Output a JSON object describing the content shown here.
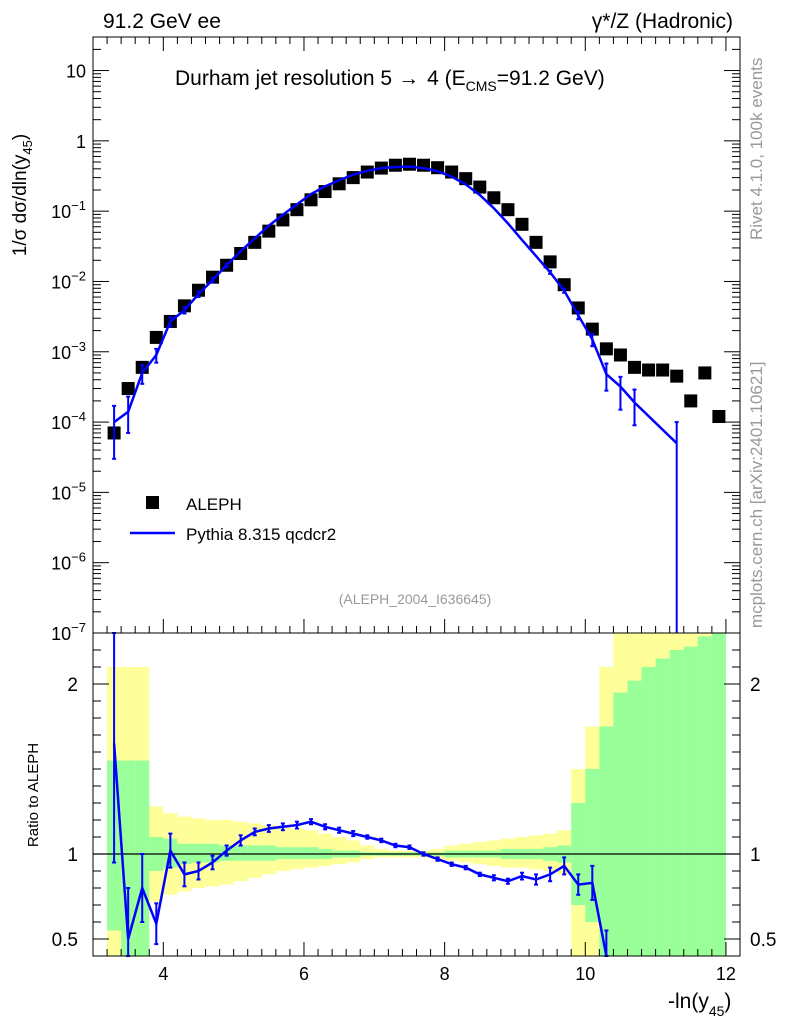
{
  "header": {
    "left": "91.2 GeV ee",
    "right": "γ*/Z (Hadronic)"
  },
  "side": {
    "rivet": "Rivet 4.1.0,  100k events",
    "mcplots": "mcplots.cern.ch [arXiv:2401.10621]"
  },
  "chart_data": {
    "type": "line",
    "title": "Durham jet resolution 5 → 4 (E_CMS=91.2 GeV)",
    "title_parts": {
      "lead": "Durham jet resolution 5",
      "arrow": "→",
      "tail": "4 (E",
      "sub": "CMS",
      "end": "=91.2 GeV)"
    },
    "analysis_id": "(ALEPH_2004_I636645)",
    "xlabel": "-ln(y45)",
    "xlabel_parts": {
      "main": "-ln(y",
      "sub": "45",
      "end": ")"
    },
    "ylabel": "1/σ dσ/dln(y45)",
    "ylabel_parts": {
      "main": "1/σ  dσ/dln(y",
      "sub": "45",
      "end": ")"
    },
    "ratio_ylabel": "Ratio to ALEPH",
    "xlim": [
      3.0,
      12.2
    ],
    "ylim_log": [
      1e-07,
      30
    ],
    "ratio_ylim": [
      0.4,
      2.3
    ],
    "x_ticks": [
      "4",
      "6",
      "8",
      "10",
      "12"
    ],
    "x_tick_values": [
      4,
      6,
      8,
      10,
      12
    ],
    "y_ticks": [
      {
        "value": 10,
        "mant": "10",
        "exp": ""
      },
      {
        "value": 1,
        "mant": "1",
        "exp": ""
      },
      {
        "value": 0.1,
        "mant": "10",
        "exp": "−1"
      },
      {
        "value": 0.01,
        "mant": "10",
        "exp": "−2"
      },
      {
        "value": 0.001,
        "mant": "10",
        "exp": "−3"
      },
      {
        "value": 0.0001,
        "mant": "10",
        "exp": "−4"
      },
      {
        "value": 1e-05,
        "mant": "10",
        "exp": "−5"
      },
      {
        "value": 1e-06,
        "mant": "10",
        "exp": "−6"
      },
      {
        "value": 1e-07,
        "mant": "10",
        "exp": "−7"
      }
    ],
    "ratio_ticks": [
      {
        "value": 2,
        "label": "2"
      },
      {
        "value": 1,
        "label": "1"
      },
      {
        "value": 0.5,
        "label": "0.5"
      }
    ],
    "legend": [
      {
        "name": "ALEPH",
        "style": "marker"
      },
      {
        "name": "Pythia 8.315 qcdcr2",
        "style": "line"
      }
    ],
    "series": [
      {
        "name": "ALEPH",
        "color": "#000000",
        "x": [
          3.3,
          3.5,
          3.7,
          3.9,
          4.1,
          4.3,
          4.5,
          4.7,
          4.9,
          5.1,
          5.3,
          5.5,
          5.7,
          5.9,
          6.1,
          6.3,
          6.5,
          6.7,
          6.9,
          7.1,
          7.3,
          7.5,
          7.7,
          7.9,
          8.1,
          8.3,
          8.5,
          8.7,
          8.9,
          9.1,
          9.3,
          9.5,
          9.7,
          9.9,
          10.1,
          10.3,
          10.5,
          10.7,
          10.9,
          11.1,
          11.3,
          11.5,
          11.7,
          11.9
        ],
        "y": [
          7e-05,
          0.0003,
          0.0006,
          0.0016,
          0.0027,
          0.0045,
          0.0075,
          0.0115,
          0.017,
          0.025,
          0.036,
          0.052,
          0.075,
          0.105,
          0.145,
          0.19,
          0.245,
          0.3,
          0.36,
          0.41,
          0.45,
          0.465,
          0.45,
          0.415,
          0.36,
          0.29,
          0.22,
          0.155,
          0.105,
          0.065,
          0.036,
          0.019,
          0.009,
          0.0042,
          0.0021,
          0.0011,
          0.0009,
          0.0006,
          0.00055,
          0.00055,
          0.00045,
          0.0002,
          0.0005,
          0.00012
        ]
      },
      {
        "name": "Pythia 8.315 qcdcr2",
        "color": "#0000ff",
        "x": [
          3.3,
          3.5,
          3.7,
          3.9,
          4.1,
          4.3,
          4.5,
          4.7,
          4.9,
          5.1,
          5.3,
          5.5,
          5.7,
          5.9,
          6.1,
          6.3,
          6.5,
          6.7,
          6.9,
          7.1,
          7.3,
          7.5,
          7.7,
          7.9,
          8.1,
          8.3,
          8.5,
          8.7,
          8.9,
          9.1,
          9.3,
          9.5,
          9.7,
          9.9,
          10.1,
          10.3,
          10.5,
          10.7,
          11.3
        ],
        "y": [
          0.0001,
          0.00014,
          0.0005,
          0.0009,
          0.0027,
          0.0039,
          0.0066,
          0.0105,
          0.017,
          0.027,
          0.041,
          0.062,
          0.089,
          0.125,
          0.175,
          0.225,
          0.275,
          0.33,
          0.375,
          0.41,
          0.425,
          0.43,
          0.41,
          0.37,
          0.31,
          0.24,
          0.17,
          0.11,
          0.067,
          0.039,
          0.023,
          0.0135,
          0.0074,
          0.0033,
          0.0015,
          0.00048,
          0.00032,
          0.00019,
          5e-05
        ],
        "err_lo": [
          7e-05,
          7e-05,
          0.00015,
          0.0002,
          0.0004,
          0.0004,
          0.0006,
          0.0008,
          0.001,
          0.0012,
          0.0015,
          0.002,
          0.0025,
          0.003,
          0.004,
          0.004,
          0.005,
          0.005,
          0.005,
          0.005,
          0.005,
          0.005,
          0.005,
          0.005,
          0.004,
          0.004,
          0.003,
          0.003,
          0.002,
          0.0015,
          0.001,
          0.0007,
          0.0005,
          0.0004,
          0.0003,
          0.0002,
          0.00017,
          0.0001,
          5e-05
        ],
        "err_hi": [
          7e-05,
          9e-05,
          0.00015,
          0.0002,
          0.0004,
          0.0004,
          0.0006,
          0.0008,
          0.001,
          0.0012,
          0.0015,
          0.002,
          0.0025,
          0.003,
          0.004,
          0.004,
          0.005,
          0.005,
          0.005,
          0.005,
          0.005,
          0.005,
          0.005,
          0.005,
          0.004,
          0.004,
          0.003,
          0.003,
          0.002,
          0.0015,
          0.001,
          0.0007,
          0.0005,
          0.0004,
          0.0003,
          0.0002,
          0.00012,
          0.0001,
          5e-05
        ]
      }
    ],
    "ratio": {
      "x": [
        3.3,
        3.5,
        3.7,
        3.9,
        4.1,
        4.3,
        4.5,
        4.7,
        4.9,
        5.1,
        5.3,
        5.5,
        5.7,
        5.9,
        6.1,
        6.3,
        6.5,
        6.7,
        6.9,
        7.1,
        7.3,
        7.5,
        7.7,
        7.9,
        8.1,
        8.3,
        8.5,
        8.7,
        8.9,
        9.1,
        9.3,
        9.5,
        9.7,
        9.9,
        10.1,
        10.3
      ],
      "y": [
        1.65,
        0.5,
        0.8,
        0.59,
        1.02,
        0.88,
        0.9,
        0.95,
        1.02,
        1.08,
        1.13,
        1.15,
        1.16,
        1.17,
        1.19,
        1.16,
        1.14,
        1.12,
        1.1,
        1.08,
        1.05,
        1.04,
        1.0,
        0.97,
        0.94,
        0.92,
        0.88,
        0.86,
        0.84,
        0.87,
        0.85,
        0.88,
        0.93,
        0.82,
        0.83,
        0.4
      ],
      "err": [
        0.7,
        0.3,
        0.2,
        0.12,
        0.1,
        0.07,
        0.05,
        0.04,
        0.03,
        0.03,
        0.02,
        0.02,
        0.02,
        0.02,
        0.015,
        0.015,
        0.015,
        0.015,
        0.01,
        0.01,
        0.01,
        0.01,
        0.01,
        0.01,
        0.01,
        0.01,
        0.01,
        0.015,
        0.015,
        0.02,
        0.03,
        0.04,
        0.05,
        0.06,
        0.1,
        0.15
      ]
    },
    "bands": {
      "x_edges": [
        3.2,
        3.4,
        3.6,
        3.8,
        4.0,
        4.2,
        4.4,
        4.6,
        4.8,
        5.0,
        5.2,
        5.4,
        5.6,
        5.8,
        6.0,
        6.2,
        6.4,
        6.6,
        6.8,
        7.0,
        7.2,
        7.4,
        7.6,
        7.8,
        8.0,
        8.2,
        8.4,
        8.6,
        8.8,
        9.0,
        9.2,
        9.4,
        9.6,
        9.8,
        10.0,
        10.2,
        10.4,
        10.6,
        10.8,
        11.0,
        11.2,
        11.4,
        11.6,
        11.8,
        12.0
      ],
      "green_lo": [
        0.55,
        0.4,
        0.4,
        0.9,
        0.92,
        0.94,
        0.95,
        0.95,
        0.96,
        0.96,
        0.96,
        0.96,
        0.97,
        0.97,
        0.97,
        0.97,
        0.98,
        0.98,
        0.99,
        0.99,
        0.99,
        0.99,
        0.99,
        0.99,
        0.98,
        0.98,
        0.98,
        0.98,
        0.97,
        0.97,
        0.97,
        0.96,
        0.95,
        0.7,
        0.6,
        0.4,
        0.4,
        0.4,
        0.4,
        0.4,
        0.4,
        0.4,
        0.4,
        0.4
      ],
      "green_hi": [
        1.55,
        1.55,
        1.55,
        1.1,
        1.09,
        1.06,
        1.06,
        1.06,
        1.05,
        1.05,
        1.05,
        1.05,
        1.04,
        1.04,
        1.04,
        1.03,
        1.02,
        1.02,
        1.01,
        1.01,
        1.01,
        1.01,
        1.01,
        1.01,
        1.02,
        1.02,
        1.02,
        1.02,
        1.03,
        1.03,
        1.03,
        1.04,
        1.05,
        1.3,
        1.5,
        1.75,
        1.95,
        2.02,
        2.1,
        2.15,
        2.2,
        2.22,
        2.28,
        2.3
      ],
      "yellow_lo": [
        0.4,
        0.4,
        0.4,
        0.72,
        0.76,
        0.78,
        0.8,
        0.81,
        0.82,
        0.84,
        0.86,
        0.88,
        0.9,
        0.91,
        0.92,
        0.93,
        0.94,
        0.95,
        0.97,
        0.98,
        0.98,
        0.98,
        0.98,
        0.97,
        0.96,
        0.95,
        0.94,
        0.93,
        0.92,
        0.92,
        0.91,
        0.9,
        0.88,
        0.4,
        0.4,
        0.4,
        0.4,
        0.4,
        0.4,
        0.4,
        0.4,
        0.4,
        0.4,
        0.4
      ],
      "yellow_hi": [
        2.1,
        2.1,
        2.1,
        1.28,
        1.24,
        1.22,
        1.21,
        1.2,
        1.2,
        1.19,
        1.18,
        1.17,
        1.16,
        1.15,
        1.14,
        1.12,
        1.1,
        1.08,
        1.05,
        1.03,
        1.02,
        1.02,
        1.02,
        1.03,
        1.05,
        1.06,
        1.07,
        1.08,
        1.09,
        1.1,
        1.11,
        1.12,
        1.14,
        1.5,
        1.75,
        2.1,
        2.3,
        2.3,
        2.3,
        2.3,
        2.3,
        2.3,
        2.3,
        2.3
      ]
    }
  }
}
